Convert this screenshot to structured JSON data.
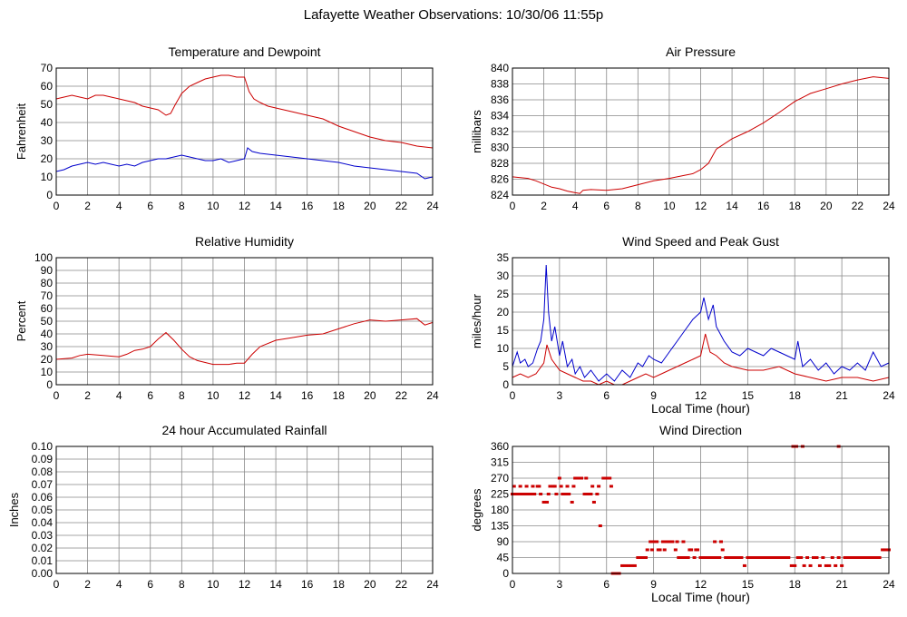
{
  "page_title": "Lafayette Weather Observations: 10/30/06 11:55p",
  "colors": {
    "red": "#cc0000",
    "blue": "#0000cc",
    "grid": "#888888",
    "frame": "#000000"
  },
  "chart_data": [
    {
      "id": "temp",
      "type": "line",
      "title": "Temperature and Dewpoint",
      "xlabel": "",
      "ylabel": "Fahrenheit",
      "xlim": [
        0,
        24
      ],
      "ylim": [
        0,
        70
      ],
      "xticks": [
        0,
        2,
        4,
        6,
        8,
        10,
        12,
        14,
        16,
        18,
        20,
        22,
        24
      ],
      "yticks": [
        0,
        10,
        20,
        30,
        40,
        50,
        60,
        70
      ],
      "grid": true,
      "series": [
        {
          "color": "#cc0000",
          "style": "line",
          "x": [
            0,
            0.5,
            1,
            1.5,
            2,
            2.5,
            3,
            3.5,
            4,
            4.5,
            5,
            5.5,
            6,
            6.5,
            7,
            7.3,
            7.6,
            8,
            8.5,
            9,
            9.5,
            10,
            10.5,
            11,
            11.5,
            12,
            12.3,
            12.6,
            13,
            13.5,
            14,
            15,
            16,
            17,
            18,
            19,
            20,
            21,
            22,
            23,
            24
          ],
          "y": [
            53,
            54,
            55,
            54,
            53,
            55,
            55,
            54,
            53,
            52,
            51,
            49,
            48,
            47,
            44,
            45,
            50,
            56,
            60,
            62,
            64,
            65,
            66,
            66,
            65,
            65,
            57,
            53,
            51,
            49,
            48,
            46,
            44,
            42,
            38,
            35,
            32,
            30,
            29,
            27,
            26
          ]
        },
        {
          "color": "#0000cc",
          "style": "line",
          "x": [
            0,
            0.5,
            1,
            1.5,
            2,
            2.5,
            3,
            3.5,
            4,
            4.5,
            5,
            5.5,
            6,
            6.5,
            7,
            7.5,
            8,
            8.5,
            9,
            9.5,
            10,
            10.5,
            11,
            11.5,
            12,
            12.2,
            12.5,
            13,
            14,
            15,
            16,
            17,
            18,
            19,
            20,
            21,
            22,
            23,
            23.5,
            24
          ],
          "y": [
            13,
            14,
            16,
            17,
            18,
            17,
            18,
            17,
            16,
            17,
            16,
            18,
            19,
            20,
            20,
            21,
            22,
            21,
            20,
            19,
            19,
            20,
            18,
            19,
            20,
            26,
            24,
            23,
            22,
            21,
            20,
            19,
            18,
            16,
            15,
            14,
            13,
            12,
            9,
            10
          ]
        }
      ]
    },
    {
      "id": "pressure",
      "type": "line",
      "title": "Air Pressure",
      "xlabel": "",
      "ylabel": "millibars",
      "xlim": [
        0,
        24
      ],
      "ylim": [
        824,
        840
      ],
      "xticks": [
        0,
        2,
        4,
        6,
        8,
        10,
        12,
        14,
        16,
        18,
        20,
        22,
        24
      ],
      "yticks": [
        824,
        826,
        828,
        830,
        832,
        834,
        836,
        838,
        840
      ],
      "grid": true,
      "series": [
        {
          "color": "#cc0000",
          "style": "line",
          "x": [
            0,
            1,
            1.5,
            2,
            2.5,
            3,
            3.5,
            4,
            4.3,
            4.5,
            5,
            6,
            7,
            8,
            9,
            10,
            11,
            11.5,
            12,
            12.5,
            13,
            14,
            15,
            16,
            17,
            18,
            19,
            20,
            21,
            22,
            23,
            24
          ],
          "y": [
            826.3,
            826.1,
            825.8,
            825.4,
            825.0,
            824.8,
            824.5,
            824.3,
            824.2,
            824.6,
            824.7,
            824.6,
            824.8,
            825.3,
            825.8,
            826.1,
            826.5,
            826.7,
            827.2,
            828.0,
            829.8,
            831.1,
            832.0,
            833.1,
            834.4,
            835.8,
            836.8,
            837.4,
            838.0,
            838.5,
            838.9,
            838.7
          ]
        }
      ]
    },
    {
      "id": "humidity",
      "type": "line",
      "title": "Relative Humidity",
      "xlabel": "",
      "ylabel": "Percent",
      "xlim": [
        0,
        24
      ],
      "ylim": [
        0,
        100
      ],
      "xticks": [
        0,
        2,
        4,
        6,
        8,
        10,
        12,
        14,
        16,
        18,
        20,
        22,
        24
      ],
      "yticks": [
        0,
        10,
        20,
        30,
        40,
        50,
        60,
        70,
        80,
        90,
        100
      ],
      "grid": true,
      "series": [
        {
          "color": "#cc0000",
          "style": "line",
          "x": [
            0,
            1,
            1.5,
            2,
            3,
            4,
            4.5,
            5,
            5.5,
            6,
            6.5,
            7,
            7.5,
            8,
            8.5,
            9,
            10,
            11,
            11.5,
            12,
            12.5,
            13,
            14,
            15,
            16,
            17,
            18,
            19,
            20,
            21,
            22,
            23,
            23.5,
            24
          ],
          "y": [
            20,
            21,
            23,
            24,
            23,
            22,
            24,
            27,
            28,
            30,
            36,
            41,
            35,
            28,
            22,
            19,
            16,
            16,
            17,
            17,
            24,
            30,
            35,
            37,
            39,
            40,
            44,
            48,
            51,
            50,
            51,
            52,
            47,
            49
          ]
        }
      ]
    },
    {
      "id": "wind",
      "type": "line",
      "title": "Wind Speed and Peak Gust",
      "xlabel": "Local Time (hour)",
      "ylabel": "miles/hour",
      "xlim": [
        0,
        24
      ],
      "ylim": [
        0,
        35
      ],
      "xticks": [
        0,
        3,
        6,
        9,
        12,
        15,
        18,
        21,
        24
      ],
      "yticks": [
        0,
        5,
        10,
        15,
        20,
        25,
        30,
        35
      ],
      "grid": true,
      "series": [
        {
          "color": "#0000cc",
          "style": "line",
          "x": [
            0,
            0.3,
            0.5,
            0.8,
            1,
            1.3,
            1.6,
            1.8,
            2,
            2.15,
            2.3,
            2.5,
            2.7,
            3,
            3.2,
            3.5,
            3.8,
            4,
            4.3,
            4.6,
            5,
            5.5,
            6,
            6.5,
            7,
            7.5,
            8,
            8.3,
            8.7,
            9,
            9.5,
            10,
            10.5,
            11,
            11.5,
            12,
            12.2,
            12.5,
            12.8,
            13,
            13.5,
            14,
            14.5,
            15,
            15.5,
            16,
            16.5,
            17,
            17.5,
            18,
            18.2,
            18.5,
            19,
            19.5,
            20,
            20.5,
            21,
            21.5,
            22,
            22.5,
            23,
            23.5,
            24
          ],
          "y": [
            5,
            9,
            6,
            7,
            5,
            6,
            10,
            12,
            18,
            33,
            20,
            12,
            16,
            8,
            12,
            5,
            7,
            3,
            5,
            2,
            4,
            1,
            3,
            1,
            4,
            2,
            6,
            5,
            8,
            7,
            6,
            9,
            12,
            15,
            18,
            20,
            24,
            18,
            22,
            16,
            12,
            9,
            8,
            10,
            9,
            8,
            10,
            9,
            8,
            7,
            12,
            5,
            7,
            4,
            6,
            3,
            5,
            4,
            6,
            4,
            9,
            5,
            6
          ]
        },
        {
          "color": "#cc0000",
          "style": "line",
          "x": [
            0,
            0.5,
            1,
            1.5,
            2,
            2.2,
            2.5,
            3,
            3.5,
            4,
            4.5,
            5,
            5.5,
            6,
            6.5,
            7,
            7.5,
            8,
            8.5,
            9,
            9.5,
            10,
            10.5,
            11,
            11.5,
            12,
            12.3,
            12.6,
            13,
            13.5,
            14,
            15,
            16,
            17,
            18,
            19,
            20,
            21,
            22,
            23,
            24
          ],
          "y": [
            2,
            3,
            2,
            3,
            6,
            11,
            7,
            4,
            3,
            2,
            1,
            1,
            0,
            1,
            0,
            0,
            1,
            2,
            3,
            2,
            3,
            4,
            5,
            6,
            7,
            8,
            14,
            9,
            8,
            6,
            5,
            4,
            4,
            5,
            3,
            2,
            1,
            2,
            2,
            1,
            2
          ]
        }
      ]
    },
    {
      "id": "rain",
      "type": "line",
      "title": "24 hour Accumulated Rainfall",
      "xlabel": "",
      "ylabel": "Inches",
      "xlim": [
        0,
        24
      ],
      "ylim": [
        0,
        0.1
      ],
      "xticks": [
        0,
        2,
        4,
        6,
        8,
        10,
        12,
        14,
        16,
        18,
        20,
        22,
        24
      ],
      "yticks": [
        0,
        0.01,
        0.02,
        0.03,
        0.04,
        0.05,
        0.06,
        0.07,
        0.08,
        0.09,
        0.1
      ],
      "ytick_labels": [
        "0.00",
        "0.01",
        "0.02",
        "0.03",
        "0.04",
        "0.05",
        "0.06",
        "0.07",
        "0.08",
        "0.09",
        "0.10"
      ],
      "grid": true,
      "series": [
        {
          "color": "#cc0000",
          "style": "line",
          "x": [
            0,
            24
          ],
          "y": [
            0,
            0
          ]
        }
      ]
    },
    {
      "id": "direction",
      "type": "scatter",
      "title": "Wind Direction",
      "xlabel": "Local Time (hour)",
      "ylabel": "degrees",
      "xlim": [
        0,
        24
      ],
      "ylim": [
        0,
        360
      ],
      "xticks": [
        0,
        3,
        6,
        9,
        12,
        15,
        18,
        21,
        24
      ],
      "yticks": [
        0,
        45,
        90,
        135,
        180,
        225,
        270,
        315,
        360
      ],
      "grid": true,
      "series": [
        {
          "color": "#cc0000",
          "style": "points",
          "x": [
            0,
            0.2,
            0.4,
            0.6,
            0.8,
            1,
            1.2,
            1.4,
            1.6,
            1.8,
            2,
            2.2,
            2.4,
            2.6,
            2.8,
            3,
            3.2,
            3.4,
            3.6,
            3.8,
            4,
            4.2,
            4.4,
            4.6,
            4.8,
            5,
            5.2,
            5.4,
            5.6,
            5.8,
            6,
            6.2,
            6.4,
            6.6,
            6.8,
            7,
            7.2,
            7.4,
            7.6,
            7.8,
            8,
            8.2,
            8.4,
            8.6,
            8.8,
            9,
            9.2,
            9.4,
            9.6,
            9.8,
            10,
            10.2,
            10.4,
            10.6,
            10.8,
            11,
            11.2,
            11.4,
            11.6,
            11.8,
            12,
            12.2,
            12.4,
            12.6,
            12.8,
            13,
            13.2,
            13.4,
            13.6,
            13.8,
            14,
            14.2,
            14.4,
            14.6,
            14.8,
            15,
            15.2,
            15.4,
            15.6,
            15.8,
            16,
            16.2,
            16.4,
            16.6,
            16.8,
            17,
            17.2,
            17.4,
            17.6,
            17.8,
            18,
            18.2,
            18.4,
            18.6,
            18.8,
            19,
            19.2,
            19.4,
            19.6,
            19.8,
            20,
            20.2,
            20.4,
            20.6,
            20.8,
            21,
            21.2,
            21.4,
            21.6,
            21.8,
            22,
            22.2,
            22.4,
            22.6,
            22.8,
            23,
            23.2,
            23.4,
            23.6,
            23.8,
            24,
            0.1,
            0.5,
            0.9,
            1.3,
            1.7,
            2.3,
            2.7,
            3.1,
            3.5,
            3.9,
            4.3,
            4.7,
            5.1,
            5.5,
            6.3,
            8.5,
            8.9,
            9.3,
            9.7,
            10.1,
            10.5,
            10.9,
            11.3,
            11.7,
            12.9,
            13.3,
            17.9,
            18.1,
            18.5,
            20.8
          ],
          "y": [
            225,
            225,
            225,
            225,
            225,
            225,
            225,
            225,
            247,
            225,
            202,
            202,
            247,
            247,
            225,
            270,
            225,
            225,
            225,
            202,
            270,
            270,
            270,
            225,
            225,
            225,
            202,
            225,
            135,
            270,
            270,
            270,
            0,
            0,
            0,
            22,
            22,
            22,
            22,
            22,
            45,
            45,
            45,
            67,
            90,
            90,
            90,
            67,
            90,
            90,
            90,
            90,
            67,
            45,
            45,
            45,
            45,
            67,
            45,
            67,
            45,
            45,
            45,
            45,
            45,
            45,
            45,
            67,
            45,
            45,
            45,
            45,
            45,
            45,
            22,
            45,
            45,
            45,
            45,
            45,
            45,
            45,
            45,
            45,
            45,
            45,
            45,
            45,
            45,
            22,
            22,
            45,
            45,
            22,
            45,
            22,
            45,
            45,
            22,
            45,
            22,
            22,
            45,
            22,
            45,
            22,
            45,
            45,
            45,
            45,
            45,
            45,
            45,
            45,
            45,
            45,
            45,
            45,
            67,
            67,
            67,
            247,
            247,
            247,
            247,
            247,
            225,
            247,
            247,
            247,
            247,
            270,
            270,
            247,
            247,
            247,
            45,
            67,
            67,
            67,
            90,
            90,
            90,
            67,
            67,
            90,
            90,
            360,
            360,
            360,
            360
          ]
        }
      ]
    }
  ]
}
